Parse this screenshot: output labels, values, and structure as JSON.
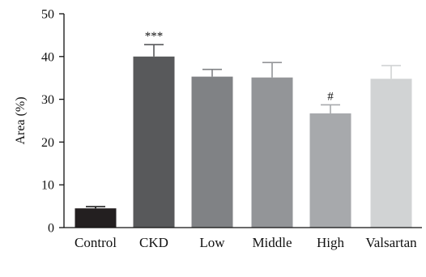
{
  "chart_data": {
    "type": "bar",
    "title": "",
    "xlabel": "",
    "ylabel": "Area (%)",
    "ylim": [
      0,
      50
    ],
    "yticks": [
      0,
      10,
      20,
      30,
      40,
      50
    ],
    "grid": false,
    "categories": [
      "Control",
      "CKD",
      "Low",
      "Middle",
      "High",
      "Valsartan"
    ],
    "values": [
      4.5,
      40.0,
      35.3,
      35.1,
      26.7,
      34.8
    ],
    "errors": [
      0.4,
      2.8,
      1.7,
      3.5,
      2.0,
      3.1
    ],
    "bar_colors": [
      "#231f20",
      "#58595b",
      "#808285",
      "#939598",
      "#a7a9ac",
      "#d1d3d4"
    ],
    "annotations": [
      {
        "category": "CKD",
        "text": "***"
      },
      {
        "category": "High",
        "text": "#"
      }
    ]
  }
}
